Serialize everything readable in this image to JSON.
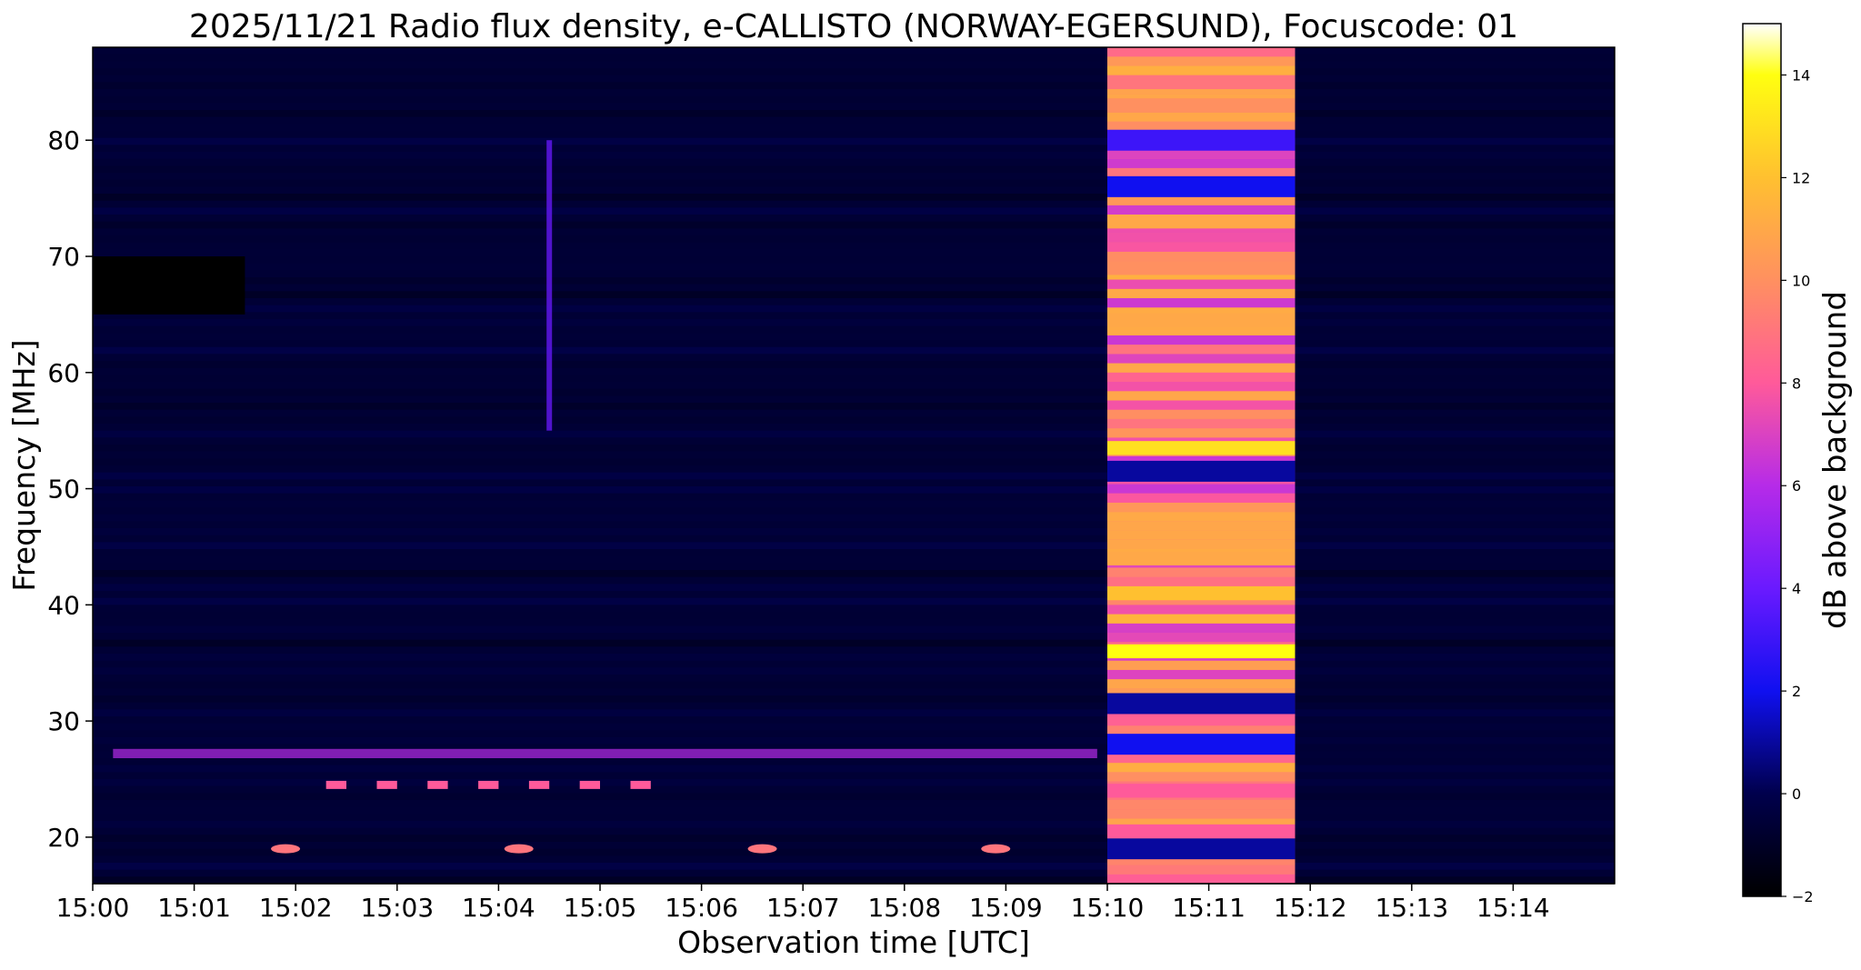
{
  "chart_data": {
    "type": "heatmap",
    "title": "2025/11/21  Radio flux density, e-CALLISTO (NORWAY-EGERSUND), Focuscode: 01",
    "xlabel": "Observation time [UTC]",
    "ylabel": "Frequency [MHz]",
    "xlim_minutes": [
      0,
      15
    ],
    "ylim": [
      16,
      88
    ],
    "x_ticks": [
      {
        "minute": 0,
        "label": "15:00"
      },
      {
        "minute": 1,
        "label": "15:01"
      },
      {
        "minute": 2,
        "label": "15:02"
      },
      {
        "minute": 3,
        "label": "15:03"
      },
      {
        "minute": 4,
        "label": "15:04"
      },
      {
        "minute": 5,
        "label": "15:05"
      },
      {
        "minute": 6,
        "label": "15:06"
      },
      {
        "minute": 7,
        "label": "15:07"
      },
      {
        "minute": 8,
        "label": "15:08"
      },
      {
        "minute": 9,
        "label": "15:09"
      },
      {
        "minute": 10,
        "label": "15:10"
      },
      {
        "minute": 11,
        "label": "15:11"
      },
      {
        "minute": 12,
        "label": "15:12"
      },
      {
        "minute": 13,
        "label": "15:13"
      },
      {
        "minute": 14,
        "label": "15:14"
      }
    ],
    "y_ticks": [
      20,
      30,
      40,
      50,
      60,
      70,
      80
    ],
    "colorbar": {
      "label": "dB above background",
      "range": [
        -2,
        15
      ],
      "ticks": [
        -2,
        0,
        2,
        4,
        6,
        8,
        10,
        12,
        14
      ],
      "colormap": [
        {
          "v": -2,
          "color": "#000000"
        },
        {
          "v": 0,
          "color": "#00004c"
        },
        {
          "v": 2,
          "color": "#1010f0"
        },
        {
          "v": 4,
          "color": "#6a1aff"
        },
        {
          "v": 6,
          "color": "#b62be8"
        },
        {
          "v": 8,
          "color": "#ff5a9a"
        },
        {
          "v": 10,
          "color": "#ff9060"
        },
        {
          "v": 12,
          "color": "#ffc030"
        },
        {
          "v": 14,
          "color": "#ffff10"
        },
        {
          "v": 15,
          "color": "#ffffff"
        }
      ]
    },
    "background_level_db": -0.6,
    "features": {
      "burst": {
        "t_start_min": 10.0,
        "t_end_min": 11.85,
        "db": 9
      },
      "bright_lines": [
        {
          "f_mhz": 53.5,
          "db": 13
        },
        {
          "f_mhz": 36.0,
          "db": 14
        },
        {
          "f_mhz": 73.0,
          "db": 11
        },
        {
          "f_mhz": 64.5,
          "db": 11
        },
        {
          "f_mhz": 41.0,
          "db": 12
        },
        {
          "f_mhz": 44.0,
          "db": 11
        },
        {
          "f_mhz": 69.0,
          "db": 10
        },
        {
          "f_mhz": 83.0,
          "db": 10
        },
        {
          "f_mhz": 85.0,
          "db": 9
        },
        {
          "f_mhz": 24.0,
          "db": 8
        },
        {
          "f_mhz": 20.5,
          "db": 8
        }
      ],
      "dark_lines_in_burst": [
        {
          "f_mhz": 80.0,
          "db": 3
        },
        {
          "f_mhz": 76.0,
          "db": 2
        },
        {
          "f_mhz": 51.5,
          "db": 1
        },
        {
          "f_mhz": 31.5,
          "db": 1
        },
        {
          "f_mhz": 28.0,
          "db": 2
        },
        {
          "f_mhz": 19.0,
          "db": 1
        }
      ],
      "interference_27mhz": {
        "f_mhz": 27.2,
        "t_start_min": 0.2,
        "t_end_min": 9.9,
        "db": 6
      },
      "dashes_24mhz": [
        {
          "t_min": 2.3,
          "f_mhz": 24.5
        },
        {
          "t_min": 2.8,
          "f_mhz": 24.5
        },
        {
          "t_min": 3.3,
          "f_mhz": 24.5
        },
        {
          "t_min": 3.8,
          "f_mhz": 24.5
        },
        {
          "t_min": 4.3,
          "f_mhz": 24.5
        },
        {
          "t_min": 4.8,
          "f_mhz": 24.5
        },
        {
          "t_min": 5.3,
          "f_mhz": 24.5
        }
      ],
      "spots_19mhz": [
        {
          "t_min": 1.9,
          "f_mhz": 19.0
        },
        {
          "t_min": 4.2,
          "f_mhz": 19.0
        },
        {
          "t_min": 6.6,
          "f_mhz": 19.0
        },
        {
          "t_min": 8.9,
          "f_mhz": 19.0
        }
      ],
      "streak": {
        "t_min": 4.5,
        "f_low_mhz": 55,
        "f_high_mhz": 80,
        "db": 4
      },
      "dark_block": {
        "t_start_min": 0.0,
        "t_end_min": 1.5,
        "f_low_mhz": 65,
        "f_high_mhz": 70
      }
    }
  }
}
